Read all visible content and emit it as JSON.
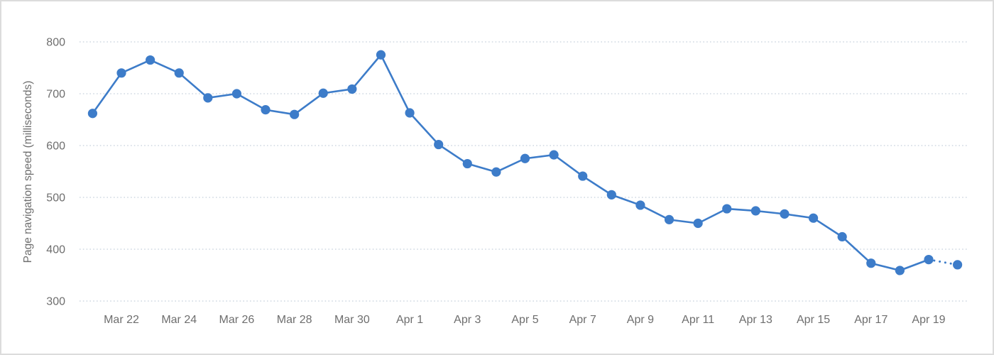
{
  "chart_data": {
    "type": "line",
    "title": "",
    "xlabel": "",
    "ylabel": "Page navigation speed (milliseconds)",
    "x": [
      "Mar 21",
      "Mar 22",
      "Mar 23",
      "Mar 24",
      "Mar 25",
      "Mar 26",
      "Mar 27",
      "Mar 28",
      "Mar 29",
      "Mar 30",
      "Mar 31",
      "Apr 1",
      "Apr 2",
      "Apr 3",
      "Apr 4",
      "Apr 5",
      "Apr 6",
      "Apr 7",
      "Apr 8",
      "Apr 9",
      "Apr 10",
      "Apr 11",
      "Apr 12",
      "Apr 13",
      "Apr 14",
      "Apr 15",
      "Apr 16",
      "Apr 17",
      "Apr 18",
      "Apr 19",
      "Apr 20"
    ],
    "values": [
      662,
      740,
      765,
      740,
      692,
      700,
      669,
      660,
      701,
      709,
      775,
      663,
      602,
      565,
      549,
      575,
      582,
      541,
      505,
      485,
      457,
      450,
      478,
      474,
      468,
      460,
      424,
      373,
      359,
      380,
      370
    ],
    "x_tick_labels": [
      "Mar 22",
      "Mar 24",
      "Mar 26",
      "Mar 28",
      "Mar 30",
      "Apr 1",
      "Apr 3",
      "Apr 5",
      "Apr 7",
      "Apr 9",
      "Apr 11",
      "Apr 13",
      "Apr 15",
      "Apr 17",
      "Apr 19"
    ],
    "y_ticks": [
      800,
      700,
      600,
      500,
      400,
      300
    ],
    "ylim": [
      300,
      800
    ],
    "grid": "horizontal-dotted",
    "legend": "none",
    "last_segment_style": "dotted",
    "colors": {
      "line": "#3d7cc9",
      "marker": "#3d7cc9",
      "gridline": "#cfd8e2",
      "tick_text": "#6e6e6e",
      "axis_title_text": "#6e6e6e",
      "frame_border": "#dcdcdc",
      "background": "#ffffff"
    }
  }
}
